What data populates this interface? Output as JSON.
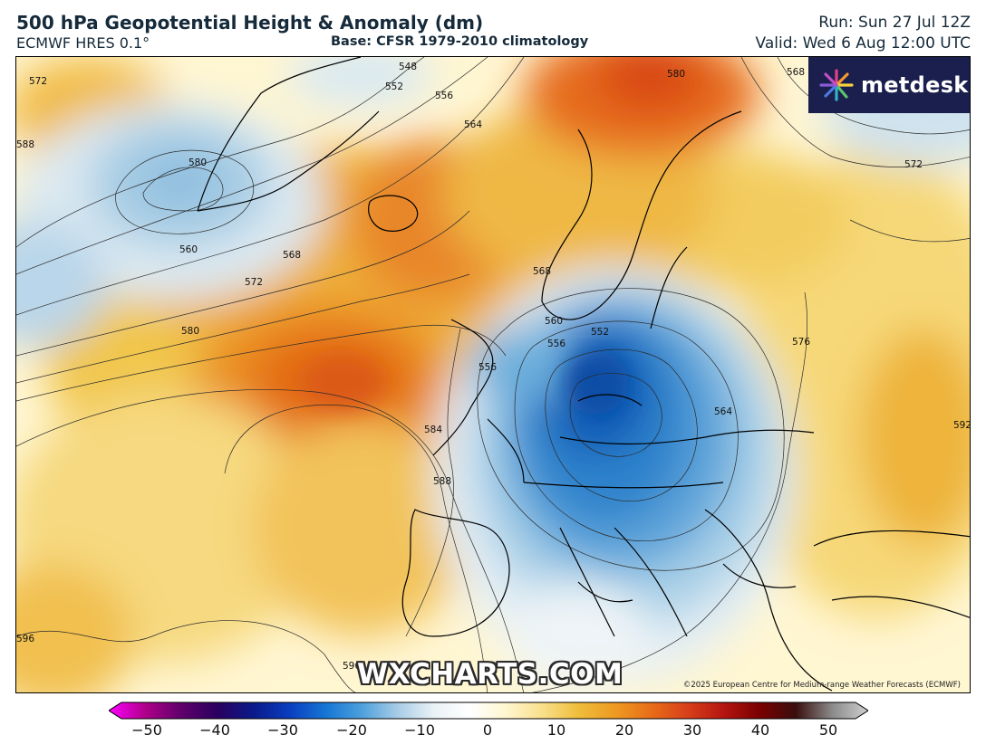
{
  "header": {
    "title": "500 hPa Geopotential Height & Anomaly (dm)",
    "model": "ECMWF HRES 0.1°",
    "base": "Base: CFSR 1979-2010 climatology",
    "run": "Run: Sun 27 Jul 12Z",
    "valid": "Valid: Wed 6 Aug 12:00 UTC"
  },
  "logo": {
    "text": "metdesk",
    "icon": "metdesk-flower-icon"
  },
  "watermark": "WXCHARTS.COM",
  "copyright": "©2025 European Centre for Medium-range Weather Forecasts (ECMWF)",
  "contour_labels": [
    "548",
    "552",
    "556",
    "564",
    "572",
    "580",
    "568",
    "560",
    "568",
    "572",
    "580",
    "584",
    "588",
    "596",
    "596",
    "560",
    "556",
    "552",
    "556",
    "564",
    "576",
    "572",
    "568",
    "580",
    "588",
    "592"
  ],
  "colorbar": {
    "range": [
      -50,
      50
    ],
    "ticks": [
      "−50",
      "−40",
      "−30",
      "−20",
      "−10",
      "0",
      "10",
      "20",
      "30",
      "40",
      "50"
    ],
    "stops": [
      "#ff00ff",
      "#b0008a",
      "#60006b",
      "#2a0060",
      "#0a1a8a",
      "#0a3ec0",
      "#1676d4",
      "#4ea0dc",
      "#a8cde6",
      "#eaf2f6",
      "#ffffff",
      "#fff6cf",
      "#f8df8a",
      "#efbd3a",
      "#ee9a22",
      "#e86d18",
      "#d8401a",
      "#b51510",
      "#7a0000",
      "#3a0e0e",
      "#8a8a8a",
      "#d0d0d0"
    ]
  },
  "colors": {
    "neutral": "#fff8d8",
    "warm_1": "#f6dc86",
    "warm_2": "#eeb73c",
    "warm_3": "#ea8e24",
    "warm_4": "#e06a18",
    "cold_1": "#d6e6f0",
    "cold_2": "#8ebedf",
    "cold_3": "#3c8fd2",
    "cold_4": "#0d5fba"
  }
}
